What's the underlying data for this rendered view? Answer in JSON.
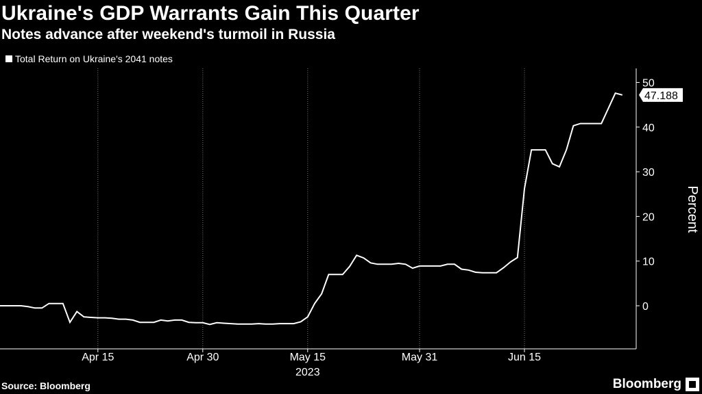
{
  "header": {
    "title": "Ukraine's GDP Warrants Gain This Quarter",
    "subtitle": "Notes advance after weekend's turmoil in Russia"
  },
  "footer": {
    "source": "Source: Bloomberg",
    "brand": "Bloomberg"
  },
  "chart_data": {
    "type": "line",
    "title": "Ukraine's GDP Warrants Gain This Quarter",
    "subtitle": "Notes advance after weekend's turmoil in Russia",
    "xlabel": "2023",
    "ylabel": "Percent",
    "ylim": [
      -9,
      51
    ],
    "yticks": [
      0,
      10,
      20,
      30,
      40,
      50
    ],
    "xticks": [
      {
        "day": 15,
        "label": "Apr 15"
      },
      {
        "day": 30,
        "label": "Apr 30"
      },
      {
        "day": 45,
        "label": "May 15"
      },
      {
        "day": 61,
        "label": "May 31"
      },
      {
        "day": 76,
        "label": "Jun 15"
      }
    ],
    "xlim": [
      1,
      91
    ],
    "grid": "vertical dotted",
    "legend_position": "top-left",
    "last_value_label": "47.188",
    "series": [
      {
        "name": "Total Return on Ukraine's 2041 notes",
        "color": "#ffffff",
        "x": [
          1,
          2,
          3,
          4,
          5,
          6,
          7,
          8,
          9,
          10,
          11,
          12,
          13,
          14,
          15,
          16,
          17,
          18,
          19,
          20,
          21,
          22,
          23,
          24,
          25,
          26,
          27,
          28,
          29,
          30,
          31,
          32,
          33,
          34,
          35,
          36,
          37,
          38,
          39,
          40,
          41,
          42,
          43,
          44,
          45,
          46,
          47,
          48,
          49,
          50,
          51,
          52,
          53,
          54,
          55,
          56,
          57,
          58,
          59,
          60,
          61,
          62,
          63,
          64,
          65,
          66,
          67,
          68,
          69,
          70,
          71,
          72,
          73,
          74,
          75,
          76,
          77,
          78,
          79,
          80,
          81,
          82,
          83,
          84,
          85,
          86,
          87,
          88,
          89,
          90
        ],
        "y": [
          0,
          0,
          0,
          0,
          -0.2,
          -0.5,
          -0.5,
          0.5,
          0.5,
          0.5,
          -3.7,
          -1.3,
          -2.5,
          -2.6,
          -2.7,
          -2.7,
          -2.8,
          -3.0,
          -3.0,
          -3.2,
          -3.7,
          -3.7,
          -3.7,
          -3.2,
          -3.4,
          -3.2,
          -3.2,
          -3.7,
          -3.8,
          -3.8,
          -4.2,
          -3.8,
          -3.9,
          -4.0,
          -4.1,
          -4.1,
          -4.1,
          -4.0,
          -4.1,
          -4.1,
          -4.0,
          -4.0,
          -4.0,
          -3.6,
          -2.5,
          0.5,
          2.7,
          7.0,
          7.0,
          7.0,
          8.8,
          11.3,
          10.7,
          9.6,
          9.3,
          9.3,
          9.3,
          9.5,
          9.3,
          8.4,
          8.9,
          8.9,
          8.9,
          8.9,
          9.3,
          9.3,
          8.2,
          8.0,
          7.5,
          7.4,
          7.4,
          7.4,
          8.5,
          9.8,
          10.8,
          26.2,
          34.9,
          34.9,
          34.9,
          31.8,
          31.1,
          34.9,
          40.3,
          40.8,
          40.8,
          40.8,
          40.8,
          44.2,
          47.6,
          47.188
        ]
      }
    ]
  }
}
